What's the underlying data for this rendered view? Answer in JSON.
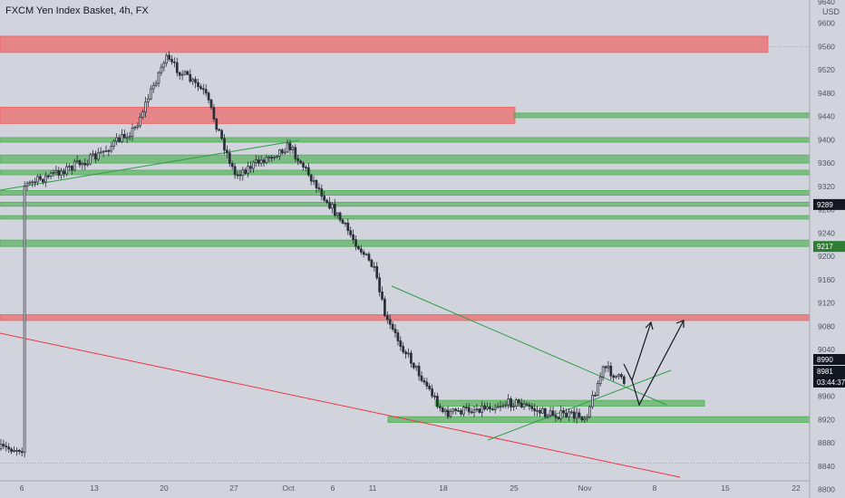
{
  "header": {
    "title": "FXCM Yen Index Basket, 4h, FX",
    "currency": "USD"
  },
  "colors": {
    "background": "#d1d4dc",
    "axis_text": "#50535e",
    "candle": "#2a2e39",
    "support_zone": "#4caf50",
    "resistance_zone": "#f05b5b",
    "trendline_green": "#2f9e44",
    "trendline_red": "#f23645",
    "price_tag_dark": "#131722",
    "price_tag_green": "#2e7d32"
  },
  "chart_data": {
    "type": "candlestick",
    "ylim": [
      8790,
      9640
    ],
    "y_ticks": [
      "9600",
      "9560",
      "9520",
      "9480",
      "9440",
      "9400",
      "9360",
      "9320",
      "9280",
      "9240",
      "9200",
      "9160",
      "9120",
      "9080",
      "9040",
      "9000",
      "8960",
      "8920",
      "8880",
      "8840",
      "8800"
    ],
    "x_ticks": [
      "6",
      "13",
      "20",
      "27",
      "Oct",
      "6",
      "11",
      "18",
      "25",
      "Nov",
      "8",
      "15",
      "22"
    ],
    "close_path": [
      {
        "x": "6",
        "y": 9330
      },
      {
        "x": "13",
        "y": 9370
      },
      {
        "x": "17",
        "y": 9420
      },
      {
        "x": "20",
        "y": 9540
      },
      {
        "x": "24",
        "y": 9480
      },
      {
        "x": "27",
        "y": 9340
      },
      {
        "x": "Oct",
        "y": 9390
      },
      {
        "x": "6",
        "y": 9320
      },
      {
        "x": "8",
        "y": 9270
      },
      {
        "x": "11",
        "y": 9180
      },
      {
        "x": "12",
        "y": 9090
      },
      {
        "x": "15",
        "y": 9040
      },
      {
        "x": "18",
        "y": 8930
      },
      {
        "x": "22",
        "y": 8870
      },
      {
        "x": "25",
        "y": 8950
      },
      {
        "x": "28",
        "y": 8930
      },
      {
        "x": "Nov",
        "y": 8925
      },
      {
        "x": "Nov 3",
        "y": 9010
      },
      {
        "x": "Nov 5",
        "y": 8981
      }
    ],
    "zones": [
      {
        "kind": "resistance",
        "low": 9550,
        "high": 9578,
        "start": "6",
        "end": "15"
      },
      {
        "kind": "resistance",
        "low": 9428,
        "high": 9456,
        "start": "6",
        "end": "25"
      },
      {
        "kind": "support",
        "low": 9438,
        "high": 9446,
        "start": "25",
        "end": "22"
      },
      {
        "kind": "support",
        "low": 9396,
        "high": 9404,
        "start": "6",
        "end": "22"
      },
      {
        "kind": "support",
        "low": 9360,
        "high": 9374,
        "start": "6",
        "end": "22"
      },
      {
        "kind": "support",
        "low": 9340,
        "high": 9348,
        "start": "6",
        "end": "22"
      },
      {
        "kind": "support",
        "low": 9305,
        "high": 9313,
        "start": "6",
        "end": "22"
      },
      {
        "kind": "support",
        "low": 9286,
        "high": 9293,
        "start": "6",
        "end": "22"
      },
      {
        "kind": "support",
        "low": 9264,
        "high": 9270,
        "start": "6",
        "end": "22"
      },
      {
        "kind": "support",
        "low": 9217,
        "high": 9228,
        "start": "6",
        "end": "22"
      },
      {
        "kind": "resistance",
        "low": 9090,
        "high": 9100,
        "start": "6",
        "end": "22"
      },
      {
        "kind": "support",
        "low": 8943,
        "high": 8953,
        "start": "18",
        "end": "15"
      },
      {
        "kind": "support",
        "low": 8915,
        "high": 8925,
        "start": "11",
        "end": "22"
      }
    ],
    "price_labels": [
      {
        "text": "9289",
        "value": 9289,
        "style": "dark"
      },
      {
        "text": "9217",
        "value": 9217,
        "style": "green"
      },
      {
        "text": "8990",
        "value": 8990,
        "style": "dark"
      },
      {
        "text": "8981",
        "value": 8981,
        "style": "dark"
      },
      {
        "text": "03:44:37",
        "value": 8981,
        "style": "dark"
      }
    ],
    "grid": false
  }
}
